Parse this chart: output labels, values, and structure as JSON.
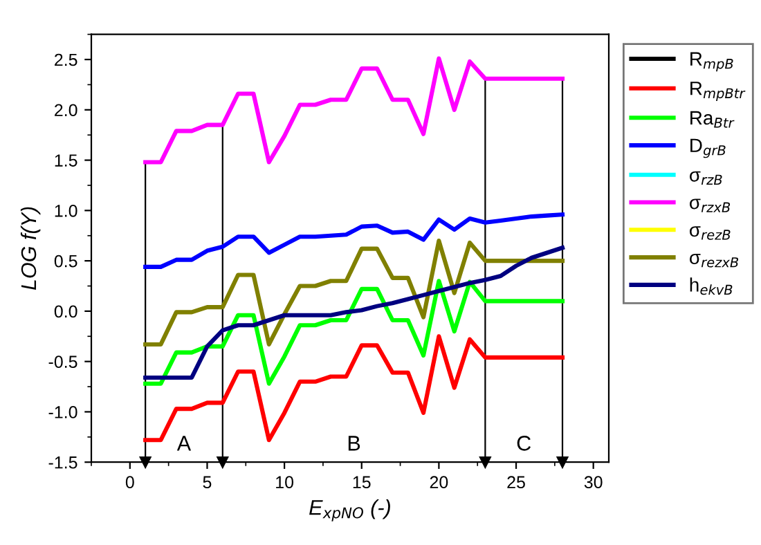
{
  "chart_data": {
    "type": "line",
    "xlabel": "E$_{xpNO}$ (-)",
    "ylabel": "LOG f(Y)",
    "xlim": [
      -2.5,
      31
    ],
    "xticks": [
      0,
      5,
      10,
      15,
      20,
      25,
      30
    ],
    "ylim": [
      -1.5,
      2.75
    ],
    "yticks": [
      -1.5,
      {
        "value": -1,
        "label": "-1.0"
      },
      -0.5,
      {
        "value": 0,
        "label": "0.0"
      },
      0.5,
      {
        "value": 1,
        "label": "1.0"
      },
      1.5,
      {
        "value": 2,
        "label": "2.0"
      },
      2.5
    ],
    "grid": false,
    "legend": "top right",
    "marker": "none",
    "line_style": "solid",
    "x": [
      1,
      2,
      3,
      4,
      5,
      6,
      7,
      8,
      9,
      10,
      11,
      12,
      13,
      14,
      15,
      16,
      17,
      18,
      19,
      20,
      21,
      22,
      23,
      24,
      25,
      26,
      27,
      28
    ],
    "series": [
      {
        "name": "R$_{mpB}$",
        "color": "#000000",
        "values": [
          null,
          null,
          null,
          null,
          null,
          null,
          null,
          null,
          null,
          null,
          null,
          null,
          null,
          null,
          null,
          null,
          null,
          null,
          null,
          null,
          null,
          null,
          null,
          null,
          null,
          null,
          null,
          null
        ]
      },
      {
        "name": "R$_{mpBtr}$",
        "color": "#ff0000",
        "values": [
          -1.28,
          -1.28,
          -0.97,
          -0.97,
          -0.91,
          -0.91,
          -0.6,
          -0.6,
          -1.28,
          -1.01,
          -0.7,
          -0.7,
          -0.65,
          -0.65,
          -0.34,
          -0.34,
          -0.61,
          -0.61,
          -1.01,
          -0.25,
          -0.76,
          -0.28,
          -0.46,
          -0.46,
          -0.46,
          -0.46,
          -0.46,
          -0.46
        ]
      },
      {
        "name": "Ra$_{Btr}$",
        "color": "#00ff00",
        "values": [
          -0.72,
          -0.72,
          -0.41,
          -0.41,
          -0.35,
          -0.35,
          -0.04,
          -0.04,
          -0.72,
          -0.45,
          -0.14,
          -0.14,
          -0.09,
          -0.09,
          0.22,
          0.22,
          -0.09,
          -0.09,
          -0.44,
          0.3,
          -0.2,
          0.29,
          0.1,
          0.1,
          0.1,
          0.1,
          0.1,
          0.1
        ]
      },
      {
        "name": "D$_{grB}$",
        "color": "#0000ff",
        "values": [
          0.44,
          0.44,
          0.51,
          0.51,
          0.6,
          0.64,
          0.74,
          0.74,
          0.58,
          0.66,
          0.74,
          0.74,
          0.75,
          0.76,
          0.84,
          0.85,
          0.78,
          0.79,
          0.71,
          0.91,
          0.81,
          0.92,
          0.88,
          0.9,
          0.92,
          0.94,
          0.95,
          0.96
        ]
      },
      {
        "name": "σ$_{rzB}$",
        "color": "#00ffff",
        "values": [
          null,
          null,
          null,
          null,
          null,
          null,
          null,
          null,
          null,
          null,
          null,
          null,
          null,
          null,
          null,
          null,
          null,
          null,
          null,
          null,
          null,
          null,
          null,
          null,
          null,
          null,
          null,
          null
        ]
      },
      {
        "name": "σ$_{rzxB}$",
        "color": "#ff00ff",
        "values": [
          1.48,
          1.48,
          1.79,
          1.79,
          1.85,
          1.85,
          2.16,
          2.16,
          1.48,
          1.74,
          2.05,
          2.05,
          2.1,
          2.1,
          2.41,
          2.41,
          2.1,
          2.1,
          1.76,
          2.51,
          2.0,
          2.48,
          2.31,
          2.31,
          2.31,
          2.31,
          2.31,
          2.31
        ]
      },
      {
        "name": "σ$_{rezB}$",
        "color": "#ffff00",
        "values": [
          null,
          null,
          null,
          null,
          null,
          null,
          null,
          null,
          null,
          null,
          null,
          null,
          null,
          null,
          null,
          null,
          null,
          null,
          null,
          null,
          null,
          null,
          null,
          null,
          null,
          null,
          null,
          null
        ]
      },
      {
        "name": "σ$_{rezxB}$",
        "color": "#808000",
        "values": [
          -0.33,
          -0.33,
          -0.01,
          -0.01,
          0.04,
          0.04,
          0.36,
          0.36,
          -0.33,
          -0.03,
          0.25,
          0.25,
          0.3,
          0.3,
          0.62,
          0.62,
          0.33,
          0.33,
          -0.06,
          0.7,
          0.18,
          0.68,
          0.5,
          0.5,
          0.5,
          0.5,
          0.5,
          0.5
        ]
      },
      {
        "name": "h$_{ekvB}$",
        "color": "#000080",
        "values": [
          -0.66,
          -0.66,
          -0.66,
          -0.66,
          -0.35,
          -0.19,
          -0.14,
          -0.14,
          -0.09,
          -0.04,
          -0.04,
          -0.04,
          -0.04,
          -0.01,
          0.01,
          0.05,
          0.08,
          0.12,
          0.16,
          0.2,
          0.24,
          0.28,
          0.31,
          0.35,
          0.45,
          0.53,
          0.58,
          0.63
        ]
      }
    ],
    "ref_lines": [
      {
        "axis": "x",
        "value": 1,
        "color": "#000000"
      },
      {
        "axis": "x",
        "value": 6,
        "color": "#000000"
      },
      {
        "axis": "x",
        "value": 23,
        "color": "#000000"
      },
      {
        "axis": "x",
        "value": 28,
        "color": "#000000"
      }
    ],
    "annotations": [
      "A",
      "B",
      "C"
    ]
  }
}
